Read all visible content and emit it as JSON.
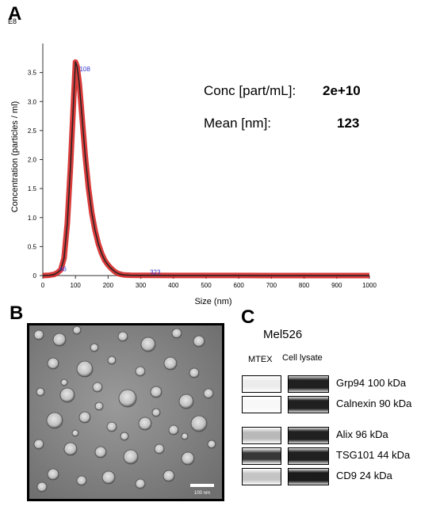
{
  "panels": {
    "a": "A",
    "b": "B",
    "c": "C"
  },
  "chart_data": {
    "type": "line",
    "multiplier_label": "E8",
    "xlabel": "Size (nm)",
    "ylabel": "Concentration (particles / ml)",
    "xlim": [
      0,
      1000
    ],
    "ylim": [
      0,
      4
    ],
    "x_ticks": [
      0,
      100,
      200,
      300,
      400,
      500,
      600,
      700,
      800,
      900,
      1000
    ],
    "y_ticks": [
      0,
      0.5,
      1.0,
      1.5,
      2.0,
      2.5,
      3.0,
      3.5
    ],
    "y_tick_labels": [
      "0",
      "0.5",
      "1.0",
      "1.5",
      "2.0",
      "2.5",
      "3.0",
      "3.5"
    ],
    "series": [
      {
        "x": [
          0,
          20,
          35,
          45,
          55,
          65,
          75,
          85,
          95,
          100,
          105,
          112,
          120,
          130,
          140,
          150,
          160,
          170,
          180,
          190,
          200,
          210,
          220,
          230,
          240,
          250,
          270,
          300,
          330,
          400,
          500,
          600,
          700,
          800,
          900,
          1000
        ],
        "y": [
          0,
          0.005,
          0.02,
          0.05,
          0.1,
          0.3,
          0.9,
          1.9,
          3.1,
          3.68,
          3.6,
          3.3,
          2.75,
          2.05,
          1.5,
          1.08,
          0.78,
          0.55,
          0.38,
          0.26,
          0.18,
          0.12,
          0.07,
          0.035,
          0.02,
          0.01,
          0.006,
          0.004,
          0.003,
          0.002,
          0.001,
          0.001,
          0,
          0,
          0,
          0
        ]
      }
    ],
    "peak_annotations": [
      {
        "text": "108",
        "x": 108,
        "y": 3.55
      },
      {
        "text": "46",
        "x": 46,
        "y": 0.1
      },
      {
        "text": "323",
        "x": 323,
        "y": 0.05
      }
    ]
  },
  "stats": {
    "conc_label": "Conc [part/mL]:",
    "conc_value": "2e+10",
    "mean_label": "Mean [nm]:",
    "mean_value": "123"
  },
  "tem": {
    "scale_bar_label": "100 nm"
  },
  "western_blot": {
    "cell_line": "Mel526",
    "columns": [
      "MTEX",
      "Cell lysate"
    ],
    "rows": [
      {
        "label": "Grp94 100 kDa",
        "mtex_intensity": 0.08,
        "lysate_intensity": 0.95
      },
      {
        "label": "Calnexin 90 kDa",
        "mtex_intensity": 0.03,
        "lysate_intensity": 0.95
      },
      {
        "label": "Alix 96 kDa",
        "mtex_intensity": 0.3,
        "lysate_intensity": 0.95
      },
      {
        "label": "TSG101 44 kDa",
        "mtex_intensity": 0.85,
        "lysate_intensity": 0.95
      },
      {
        "label": "CD9 24 kDa",
        "mtex_intensity": 0.25,
        "lysate_intensity": 0.97
      }
    ]
  }
}
